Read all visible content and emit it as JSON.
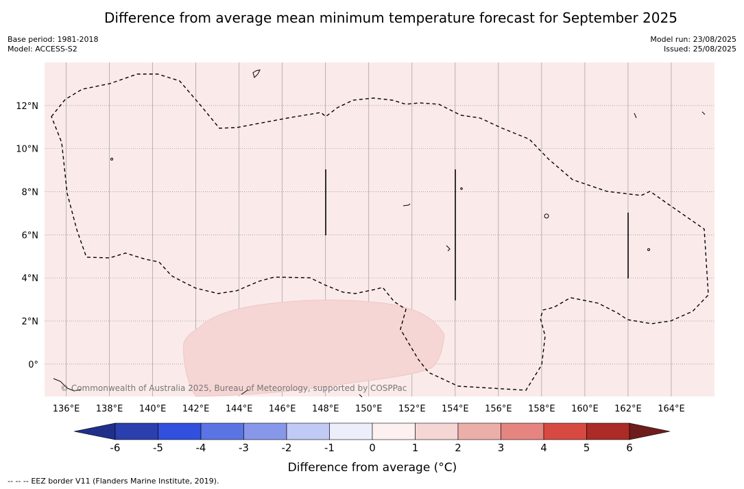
{
  "title": "Difference from average mean minimum temperature forecast for September 2025",
  "meta": {
    "base_period": "Base period: 1981-2018",
    "model": "Model: ACCESS-S2",
    "model_run": "Model run: 23/08/2025",
    "issued": "Issued: 25/08/2025"
  },
  "map": {
    "lon_range": [
      135,
      166
    ],
    "lat_range": [
      -1.5,
      14
    ],
    "lon_ticks": [
      "136°E",
      "138°E",
      "140°E",
      "142°E",
      "144°E",
      "146°E",
      "148°E",
      "150°E",
      "152°E",
      "154°E",
      "156°E",
      "158°E",
      "160°E",
      "162°E",
      "164°E"
    ],
    "lat_ticks": [
      "12°N",
      "10°N",
      "8°N",
      "6°N",
      "4°N",
      "2°N",
      "0°"
    ],
    "background_color": "#fbeaea",
    "anomaly_color": "#f5d6d4",
    "copyright": "© Commonwealth of Australia 2025, Bureau of Meteorology, supported by COSPPac"
  },
  "colorbar": {
    "label": "Difference from average (°C)",
    "tick_labels": [
      "-6",
      "-5",
      "-4",
      "-3",
      "-2",
      "-1",
      "0",
      "1",
      "2",
      "3",
      "4",
      "5",
      "6"
    ],
    "colors": [
      "#1f2f8a",
      "#2b3fae",
      "#3150de",
      "#5b74e4",
      "#8798ea",
      "#c1c9f5",
      "#eceefc",
      "#fdf0f0",
      "#f5d6d4",
      "#ebaea9",
      "#e6847f",
      "#d74a42",
      "#ac2b27",
      "#6e1d1c"
    ]
  },
  "footer": {
    "legend_symbol": "-- -- --",
    "legend_text": "EEZ border V11 (Flanders Marine Institute, 2019)."
  }
}
